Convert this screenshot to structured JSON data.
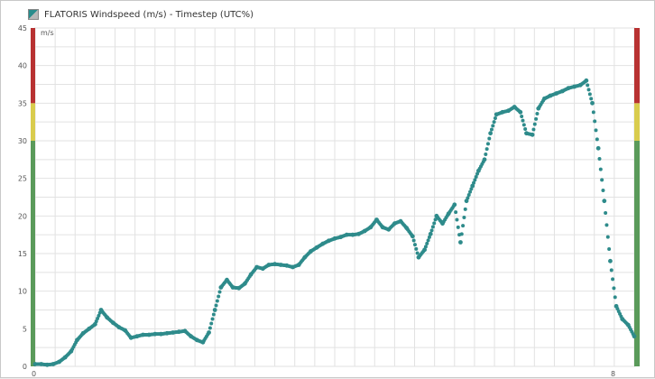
{
  "window": {
    "title": "FLATORIS Windspeed (m/s) - Timestep (UTC%)",
    "window_icon": "chart-icon"
  },
  "chart_data": {
    "type": "scatter",
    "title": "",
    "xlabel": "",
    "ylabel": "m/s",
    "ylim": [
      0,
      45
    ],
    "ytick_step": 5,
    "ytick_labels": [
      "0",
      "5",
      "10",
      "15",
      "20",
      "25",
      "30",
      "35",
      "40",
      "45"
    ],
    "y_unit_label": "m/s",
    "xlim": [
      0,
      100
    ],
    "x_label_left": "0",
    "x_label_right": "8",
    "grid": true,
    "series": [
      {
        "color": "#2e8b8b",
        "points": [
          [
            0,
            0.3
          ],
          [
            1,
            0.3
          ],
          [
            2,
            0.2
          ],
          [
            3,
            0.3
          ],
          [
            4,
            0.6
          ],
          [
            5,
            1.2
          ],
          [
            6,
            2.0
          ],
          [
            7,
            3.5
          ],
          [
            8,
            4.4
          ],
          [
            9,
            5.0
          ],
          [
            10,
            5.6
          ],
          [
            11,
            7.5
          ],
          [
            12,
            6.5
          ],
          [
            13,
            5.8
          ],
          [
            14,
            5.2
          ],
          [
            15,
            4.8
          ],
          [
            16,
            3.8
          ],
          [
            17,
            4.0
          ],
          [
            18,
            4.2
          ],
          [
            19,
            4.2
          ],
          [
            20,
            4.3
          ],
          [
            21,
            4.3
          ],
          [
            22,
            4.4
          ],
          [
            23,
            4.5
          ],
          [
            24,
            4.6
          ],
          [
            25,
            4.7
          ],
          [
            26,
            4.0
          ],
          [
            27,
            3.5
          ],
          [
            28,
            3.2
          ],
          [
            29,
            4.5
          ],
          [
            30,
            7.5
          ],
          [
            31,
            10.5
          ],
          [
            32,
            11.5
          ],
          [
            33,
            10.5
          ],
          [
            34,
            10.4
          ],
          [
            35,
            11.0
          ],
          [
            36,
            12.2
          ],
          [
            37,
            13.2
          ],
          [
            38,
            13.0
          ],
          [
            39,
            13.5
          ],
          [
            40,
            13.6
          ],
          [
            41,
            13.5
          ],
          [
            42,
            13.4
          ],
          [
            43,
            13.2
          ],
          [
            44,
            13.5
          ],
          [
            45,
            14.5
          ],
          [
            46,
            15.3
          ],
          [
            47,
            15.8
          ],
          [
            48,
            16.3
          ],
          [
            49,
            16.7
          ],
          [
            50,
            17.0
          ],
          [
            51,
            17.2
          ],
          [
            52,
            17.5
          ],
          [
            53,
            17.5
          ],
          [
            54,
            17.6
          ],
          [
            55,
            18.0
          ],
          [
            56,
            18.5
          ],
          [
            57,
            19.5
          ],
          [
            58,
            18.5
          ],
          [
            59,
            18.2
          ],
          [
            60,
            19.0
          ],
          [
            61,
            19.3
          ],
          [
            62,
            18.4
          ],
          [
            63,
            17.3
          ],
          [
            64,
            14.5
          ],
          [
            65,
            15.5
          ],
          [
            66,
            17.6
          ],
          [
            67,
            20.0
          ],
          [
            68,
            19.0
          ],
          [
            69,
            20.3
          ],
          [
            70,
            21.5
          ],
          [
            71,
            16.5
          ],
          [
            72,
            22.0
          ],
          [
            73,
            24.0
          ],
          [
            74,
            26.0
          ],
          [
            75,
            27.5
          ],
          [
            76,
            31.0
          ],
          [
            77,
            33.5
          ],
          [
            78,
            33.8
          ],
          [
            79,
            34.0
          ],
          [
            80,
            34.5
          ],
          [
            81,
            33.8
          ],
          [
            82,
            31.0
          ],
          [
            83,
            30.8
          ],
          [
            84,
            34.3
          ],
          [
            85,
            35.6
          ],
          [
            86,
            36.0
          ],
          [
            87,
            36.3
          ],
          [
            88,
            36.6
          ],
          [
            89,
            37.0
          ],
          [
            90,
            37.2
          ],
          [
            91,
            37.4
          ],
          [
            92,
            38.0
          ],
          [
            93,
            35.0
          ],
          [
            94,
            29.0
          ],
          [
            95,
            22.0
          ],
          [
            96,
            14.0
          ],
          [
            97,
            8.0
          ],
          [
            98,
            6.3
          ],
          [
            99,
            5.5
          ],
          [
            100,
            4.0
          ]
        ]
      }
    ],
    "zones": [
      {
        "from": 0,
        "to": 30,
        "color": "#5a9a5a"
      },
      {
        "from": 30,
        "to": 35,
        "color": "#d9cc4d"
      },
      {
        "from": 35,
        "to": 45,
        "color": "#b83232"
      }
    ]
  }
}
